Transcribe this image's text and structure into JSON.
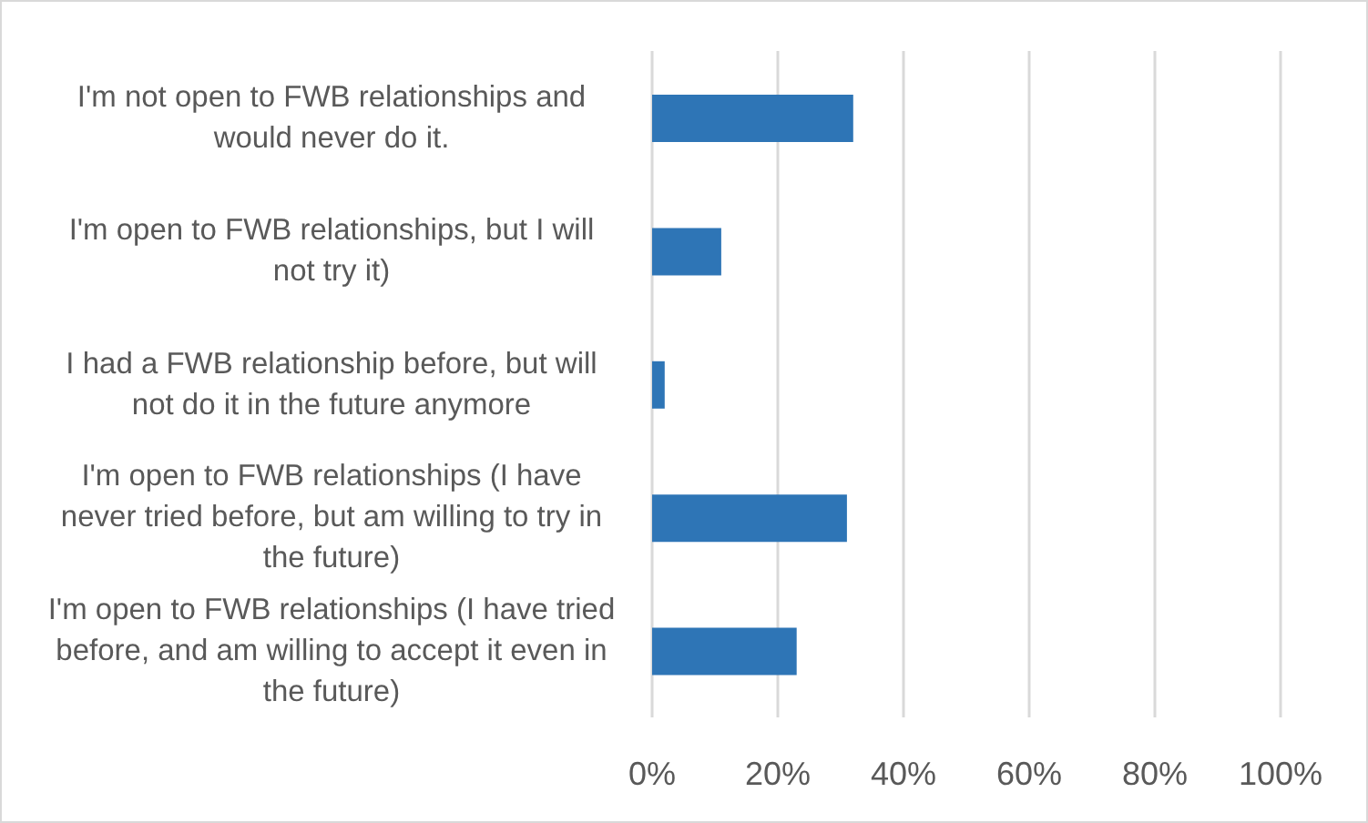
{
  "chart_data": {
    "type": "bar",
    "orientation": "horizontal",
    "categories": [
      "I'm not open to FWB relationships and would never do it.",
      "I'm open to FWB relationships, but I will not try it)",
      "I had a FWB relationship before, but will not do it in the future anymore",
      "I'm open to FWB relationships (I have never tried before, but am willing to try in the future)",
      "I'm open to FWB relationships (I have tried before, and am willing to accept it even in the future)"
    ],
    "values": [
      32,
      11,
      2,
      31,
      23
    ],
    "color": "#2e75b6",
    "xlim": [
      0,
      100
    ],
    "xticks": [
      {
        "value": 0,
        "label": "0%"
      },
      {
        "value": 20,
        "label": "20%"
      },
      {
        "value": 40,
        "label": "40%"
      },
      {
        "value": 60,
        "label": "60%"
      },
      {
        "value": 80,
        "label": "80%"
      },
      {
        "value": 100,
        "label": "100%"
      }
    ],
    "grid": "x"
  }
}
